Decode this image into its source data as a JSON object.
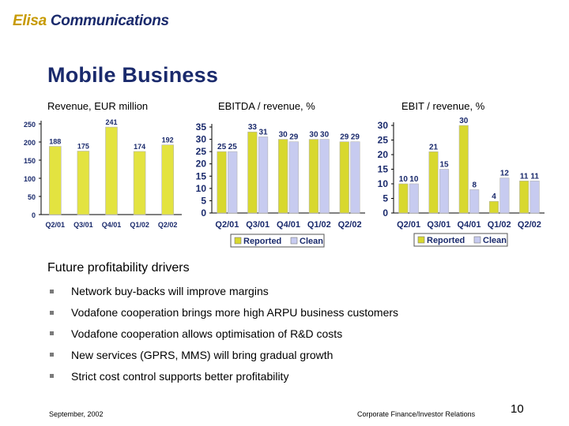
{
  "header": {
    "brand": "Elisa",
    "brand_rest": " Communications",
    "title": "Mobile Business"
  },
  "colors": {
    "reported": "#d8d82e",
    "clean": "#c7cbf0",
    "revenue_bar": "#e3e340",
    "title": "#1a2a6c",
    "tick": "#1a2a6c"
  },
  "chart_data": [
    {
      "type": "bar",
      "title": "Revenue, EUR million",
      "categories": [
        "Q2/01",
        "Q3/01",
        "Q4/01",
        "Q1/02",
        "Q2/02"
      ],
      "values": [
        188,
        175,
        241,
        174,
        192
      ],
      "yticks": [
        0,
        50,
        100,
        150,
        200,
        250
      ],
      "ylim": [
        0,
        250
      ],
      "grid": false
    },
    {
      "type": "bar",
      "title": "EBITDA / revenue, %",
      "categories": [
        "Q2/01",
        "Q3/01",
        "Q4/01",
        "Q1/02",
        "Q2/02"
      ],
      "series": [
        {
          "name": "Reported",
          "values": [
            25,
            33,
            30,
            30,
            29
          ]
        },
        {
          "name": "Clean",
          "values": [
            25,
            31,
            29,
            30,
            29
          ]
        }
      ],
      "yticks": [
        0,
        5,
        10,
        15,
        20,
        25,
        30,
        35
      ],
      "ylim": [
        0,
        35
      ],
      "grid": false,
      "legend": "bottom"
    },
    {
      "type": "bar",
      "title": "EBIT / revenue, %",
      "categories": [
        "Q2/01",
        "Q3/01",
        "Q4/01",
        "Q1/02",
        "Q2/02"
      ],
      "series": [
        {
          "name": "Reported",
          "values": [
            10,
            21,
            30,
            4,
            11
          ]
        },
        {
          "name": "Clean",
          "values": [
            10,
            15,
            8,
            12,
            11
          ]
        }
      ],
      "yticks": [
        0,
        5,
        10,
        15,
        20,
        25,
        30
      ],
      "ylim": [
        0,
        30
      ],
      "grid": false,
      "legend": "bottom"
    }
  ],
  "drivers": {
    "heading": "Future profitability drivers",
    "items": [
      "Network buy-backs will improve margins",
      "Vodafone cooperation brings more high ARPU business customers",
      "Vodafone cooperation allows optimisation of R&D costs",
      "New services (GPRS, MMS) will bring gradual growth",
      "Strict cost control supports better profitability"
    ]
  },
  "footer": {
    "date": "September, 2002",
    "department": "Corporate Finance/Investor Relations",
    "page": "10"
  }
}
